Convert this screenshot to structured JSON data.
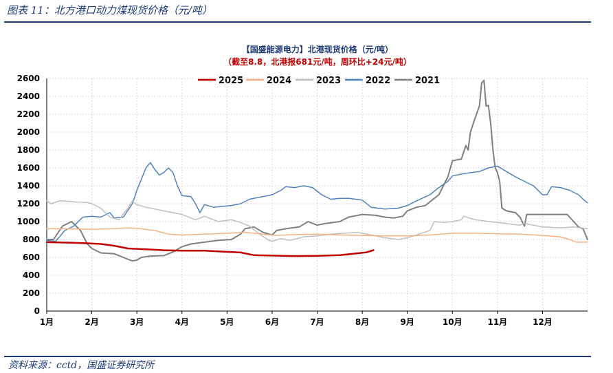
{
  "figure": {
    "title": "图表 11：北方港口动力煤现货价格（元/吨）",
    "source": "资料来源：cctd，国盛证券研究所"
  },
  "chart_data": {
    "type": "line",
    "title": "【国盛能源电力】北港现货价格（元/吨）",
    "subtitle": "（截至8.8，北港报681元/吨，周环比+24元/吨）",
    "xlabel": "",
    "ylabel": "",
    "x_unit": "month",
    "x_range": [
      1,
      13
    ],
    "xticks": [
      {
        "value": 1,
        "label": "1月"
      },
      {
        "value": 2,
        "label": "2月"
      },
      {
        "value": 3,
        "label": "3月"
      },
      {
        "value": 4,
        "label": "4月"
      },
      {
        "value": 5,
        "label": "5月"
      },
      {
        "value": 6,
        "label": "6月"
      },
      {
        "value": 7,
        "label": "7月"
      },
      {
        "value": 8,
        "label": "8月"
      },
      {
        "value": 9,
        "label": "9月"
      },
      {
        "value": 10,
        "label": "10月"
      },
      {
        "value": 11,
        "label": "11月"
      },
      {
        "value": 12,
        "label": "12月"
      }
    ],
    "ylim": [
      0,
      2600
    ],
    "yticks": [
      0,
      200,
      400,
      600,
      800,
      1000,
      1200,
      1400,
      1600,
      1800,
      2000,
      2200,
      2400,
      2600
    ],
    "grid": true,
    "legend_position": "top",
    "series": [
      {
        "name": "2025",
        "color": "#c00000",
        "width": 2.5,
        "points": [
          [
            1.0,
            770
          ],
          [
            1.5,
            765
          ],
          [
            1.8,
            760
          ],
          [
            2.2,
            750
          ],
          [
            2.5,
            730
          ],
          [
            2.8,
            700
          ],
          [
            3.2,
            690
          ],
          [
            3.6,
            680
          ],
          [
            4.0,
            675
          ],
          [
            4.5,
            675
          ],
          [
            4.9,
            665
          ],
          [
            5.3,
            655
          ],
          [
            5.6,
            625
          ],
          [
            6.0,
            620
          ],
          [
            6.5,
            615
          ],
          [
            7.0,
            618
          ],
          [
            7.5,
            625
          ],
          [
            7.8,
            640
          ],
          [
            8.1,
            657
          ],
          [
            8.25,
            681
          ]
        ]
      },
      {
        "name": "2024",
        "color": "#f4b183",
        "width": 1.5,
        "points": [
          [
            1.0,
            920
          ],
          [
            1.3,
            920
          ],
          [
            2.0,
            915
          ],
          [
            2.5,
            920
          ],
          [
            2.8,
            930
          ],
          [
            3.0,
            925
          ],
          [
            3.4,
            900
          ],
          [
            3.7,
            860
          ],
          [
            4.0,
            850
          ],
          [
            4.5,
            860
          ],
          [
            5.0,
            870
          ],
          [
            5.4,
            880
          ],
          [
            5.8,
            860
          ],
          [
            6.1,
            845
          ],
          [
            6.5,
            855
          ],
          [
            7.0,
            860
          ],
          [
            7.5,
            850
          ],
          [
            8.0,
            845
          ],
          [
            8.5,
            840
          ],
          [
            9.0,
            840
          ],
          [
            9.5,
            850
          ],
          [
            10.0,
            870
          ],
          [
            10.5,
            870
          ],
          [
            11.0,
            865
          ],
          [
            11.5,
            860
          ],
          [
            12.0,
            845
          ],
          [
            12.4,
            830
          ],
          [
            12.6,
            800
          ],
          [
            12.75,
            770
          ],
          [
            13.0,
            770
          ]
        ]
      },
      {
        "name": "2023",
        "color": "#bfbfbf",
        "width": 1.5,
        "points": [
          [
            1.0,
            1230
          ],
          [
            1.1,
            1200
          ],
          [
            1.3,
            1235
          ],
          [
            1.6,
            1220
          ],
          [
            1.9,
            1215
          ],
          [
            2.0,
            1200
          ],
          [
            2.2,
            1150
          ],
          [
            2.4,
            1050
          ],
          [
            2.6,
            1020
          ],
          [
            2.8,
            1150
          ],
          [
            2.9,
            1230
          ],
          [
            3.0,
            1190
          ],
          [
            3.2,
            1160
          ],
          [
            3.5,
            1130
          ],
          [
            3.8,
            1100
          ],
          [
            4.0,
            1080
          ],
          [
            4.3,
            1020
          ],
          [
            4.5,
            1060
          ],
          [
            4.8,
            1000
          ],
          [
            5.1,
            1020
          ],
          [
            5.3,
            990
          ],
          [
            5.5,
            950
          ],
          [
            5.7,
            870
          ],
          [
            5.9,
            800
          ],
          [
            6.0,
            780
          ],
          [
            6.2,
            810
          ],
          [
            6.4,
            790
          ],
          [
            6.7,
            830
          ],
          [
            7.0,
            840
          ],
          [
            7.3,
            860
          ],
          [
            7.6,
            870
          ],
          [
            7.9,
            880
          ],
          [
            8.2,
            850
          ],
          [
            8.5,
            820
          ],
          [
            8.8,
            800
          ],
          [
            9.0,
            820
          ],
          [
            9.2,
            850
          ],
          [
            9.5,
            900
          ],
          [
            9.6,
            1000
          ],
          [
            9.8,
            990
          ],
          [
            10.0,
            1000
          ],
          [
            10.2,
            1020
          ],
          [
            10.25,
            1060
          ],
          [
            10.5,
            1020
          ],
          [
            11.0,
            990
          ],
          [
            11.5,
            960
          ],
          [
            11.6,
            980
          ],
          [
            12.0,
            940
          ],
          [
            12.4,
            930
          ],
          [
            12.7,
            940
          ],
          [
            13.0,
            920
          ]
        ]
      },
      {
        "name": "2022",
        "color": "#4f81bd",
        "width": 1.5,
        "points": [
          [
            1.0,
            790
          ],
          [
            1.2,
            780
          ],
          [
            1.4,
            900
          ],
          [
            1.6,
            950
          ],
          [
            1.8,
            1050
          ],
          [
            2.0,
            1060
          ],
          [
            2.2,
            1050
          ],
          [
            2.4,
            1100
          ],
          [
            2.5,
            1040
          ],
          [
            2.7,
            1050
          ],
          [
            2.9,
            1200
          ],
          [
            3.0,
            1350
          ],
          [
            3.2,
            1600
          ],
          [
            3.3,
            1660
          ],
          [
            3.4,
            1580
          ],
          [
            3.5,
            1520
          ],
          [
            3.6,
            1550
          ],
          [
            3.7,
            1600
          ],
          [
            3.8,
            1550
          ],
          [
            3.9,
            1400
          ],
          [
            4.0,
            1290
          ],
          [
            4.2,
            1280
          ],
          [
            4.3,
            1200
          ],
          [
            4.4,
            1100
          ],
          [
            4.5,
            1190
          ],
          [
            4.7,
            1160
          ],
          [
            4.9,
            1170
          ],
          [
            5.1,
            1180
          ],
          [
            5.3,
            1200
          ],
          [
            5.5,
            1250
          ],
          [
            5.7,
            1270
          ],
          [
            5.9,
            1290
          ],
          [
            6.0,
            1300
          ],
          [
            6.2,
            1350
          ],
          [
            6.3,
            1390
          ],
          [
            6.5,
            1380
          ],
          [
            6.7,
            1400
          ],
          [
            6.9,
            1380
          ],
          [
            7.1,
            1300
          ],
          [
            7.3,
            1250
          ],
          [
            7.5,
            1260
          ],
          [
            7.7,
            1260
          ],
          [
            8.0,
            1240
          ],
          [
            8.2,
            1160
          ],
          [
            8.5,
            1140
          ],
          [
            8.8,
            1150
          ],
          [
            9.0,
            1180
          ],
          [
            9.2,
            1230
          ],
          [
            9.5,
            1300
          ],
          [
            9.7,
            1380
          ],
          [
            9.9,
            1450
          ],
          [
            10.0,
            1510
          ],
          [
            10.3,
            1540
          ],
          [
            10.6,
            1560
          ],
          [
            10.8,
            1600
          ],
          [
            11.0,
            1620
          ],
          [
            11.2,
            1560
          ],
          [
            11.4,
            1500
          ],
          [
            11.6,
            1450
          ],
          [
            11.8,
            1400
          ],
          [
            11.9,
            1350
          ],
          [
            12.0,
            1300
          ],
          [
            12.1,
            1300
          ],
          [
            12.2,
            1390
          ],
          [
            12.4,
            1380
          ],
          [
            12.6,
            1350
          ],
          [
            12.8,
            1300
          ],
          [
            12.9,
            1250
          ],
          [
            13.0,
            1210
          ]
        ]
      },
      {
        "name": "2021",
        "color": "#7f7f7f",
        "width": 2,
        "points": [
          [
            1.0,
            800
          ],
          [
            1.15,
            800
          ],
          [
            1.35,
            950
          ],
          [
            1.55,
            1000
          ],
          [
            1.75,
            900
          ],
          [
            1.9,
            750
          ],
          [
            2.0,
            700
          ],
          [
            2.2,
            650
          ],
          [
            2.5,
            640
          ],
          [
            2.7,
            600
          ],
          [
            2.9,
            560
          ],
          [
            3.0,
            570
          ],
          [
            3.1,
            600
          ],
          [
            3.3,
            615
          ],
          [
            3.6,
            620
          ],
          [
            3.8,
            660
          ],
          [
            4.0,
            720
          ],
          [
            4.2,
            750
          ],
          [
            4.5,
            770
          ],
          [
            4.8,
            790
          ],
          [
            5.1,
            800
          ],
          [
            5.3,
            860
          ],
          [
            5.4,
            920
          ],
          [
            5.6,
            940
          ],
          [
            5.8,
            880
          ],
          [
            6.0,
            850
          ],
          [
            6.1,
            900
          ],
          [
            6.3,
            920
          ],
          [
            6.6,
            940
          ],
          [
            6.8,
            1000
          ],
          [
            7.0,
            960
          ],
          [
            7.2,
            980
          ],
          [
            7.5,
            1000
          ],
          [
            7.7,
            1050
          ],
          [
            8.0,
            1080
          ],
          [
            8.3,
            1070
          ],
          [
            8.5,
            1050
          ],
          [
            8.7,
            1040
          ],
          [
            8.9,
            1060
          ],
          [
            9.0,
            1120
          ],
          [
            9.2,
            1160
          ],
          [
            9.4,
            1180
          ],
          [
            9.6,
            1260
          ],
          [
            9.7,
            1300
          ],
          [
            9.9,
            1500
          ],
          [
            10.0,
            1680
          ],
          [
            10.2,
            1700
          ],
          [
            10.3,
            1850
          ],
          [
            10.35,
            1800
          ],
          [
            10.4,
            2000
          ],
          [
            10.5,
            2150
          ],
          [
            10.6,
            2290
          ],
          [
            10.65,
            2550
          ],
          [
            10.7,
            2580
          ],
          [
            10.75,
            2290
          ],
          [
            10.8,
            2300
          ],
          [
            10.85,
            2100
          ],
          [
            10.9,
            1800
          ],
          [
            10.95,
            1600
          ],
          [
            11.0,
            1550
          ],
          [
            11.05,
            1450
          ],
          [
            11.1,
            1150
          ],
          [
            11.2,
            1120
          ],
          [
            11.4,
            1100
          ],
          [
            11.5,
            1050
          ],
          [
            11.6,
            950
          ],
          [
            11.65,
            1080
          ],
          [
            11.8,
            1080
          ],
          [
            12.0,
            1080
          ],
          [
            12.3,
            1080
          ],
          [
            12.55,
            1080
          ],
          [
            12.6,
            1050
          ],
          [
            12.8,
            940
          ],
          [
            12.9,
            920
          ],
          [
            13.0,
            800
          ]
        ]
      }
    ]
  }
}
